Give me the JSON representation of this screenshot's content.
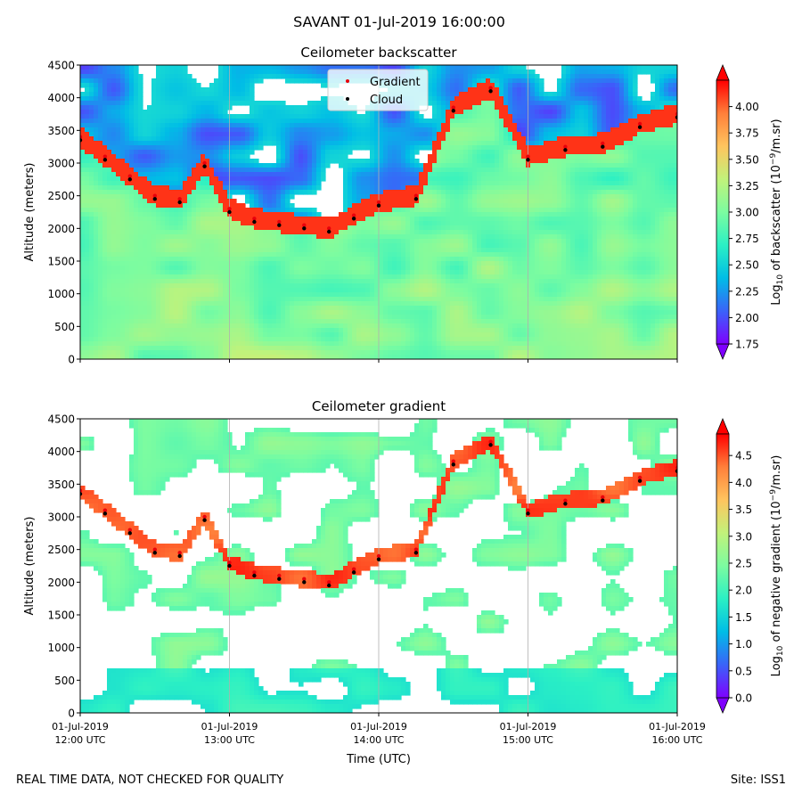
{
  "suptitle": "SAVANT 01-Jul-2019 16:00:00",
  "footer_left": "REAL TIME DATA, NOT CHECKED FOR QUALITY",
  "footer_right": "Site: ISS1",
  "colormap": [
    "#7f00ff",
    "#3a63f9",
    "#00bde6",
    "#2bf0c4",
    "#7cfca0",
    "#c2f27a",
    "#ffc45e",
    "#ff7f3a",
    "#ff0000"
  ],
  "colors": {
    "gradient_marker": "#e8000b",
    "cloud_marker": "#000000",
    "grid": "#b0b0b0"
  },
  "chart_data": [
    {
      "type": "heatmap",
      "title": "Ceilometer backscatter",
      "xlabel": "",
      "ylabel": "Altitude (meters)",
      "xlim": [
        "2019-07-01 12:00",
        "2019-07-01 16:00"
      ],
      "ylim": [
        0,
        4500
      ],
      "yticks": [
        "0",
        "500",
        "1000",
        "1500",
        "2000",
        "2500",
        "3000",
        "3500",
        "4000",
        "4500"
      ],
      "grid": "vertical lines at hour ticks",
      "legend": {
        "placement": "top-center",
        "entries": [
          "Gradient",
          "Cloud"
        ]
      },
      "colorbar": {
        "label_prefix": "Log",
        "label_sub": "10",
        "label_mid": " of backscatter (10",
        "label_sup": "−9",
        "label_suffix": "/m.sr)",
        "range": [
          1.75,
          4.25
        ],
        "extend": "both",
        "ticks": [
          "1.75",
          "2.00",
          "2.25",
          "2.50",
          "2.75",
          "3.00",
          "3.25",
          "3.50",
          "3.75",
          "4.00"
        ]
      },
      "series": [
        {
          "name": "Gradient",
          "marker": "red-dot",
          "x": [
            "12:00",
            "12:10",
            "12:20",
            "12:30",
            "12:40",
            "12:50",
            "13:00",
            "13:10",
            "13:20",
            "13:30",
            "13:40",
            "13:50",
            "14:00",
            "14:15",
            "14:30",
            "14:45",
            "15:00",
            "15:15",
            "15:30",
            "15:45",
            "16:00"
          ],
          "y": [
            3400,
            3100,
            2800,
            2500,
            2450,
            3000,
            2300,
            2150,
            2100,
            2050,
            2000,
            2200,
            2400,
            2500,
            3850,
            4150,
            3100,
            3250,
            3300,
            3600,
            3750
          ]
        },
        {
          "name": "Cloud",
          "marker": "black-dot",
          "x": [
            "12:00",
            "12:10",
            "12:20",
            "12:30",
            "12:40",
            "12:50",
            "13:00",
            "13:10",
            "13:20",
            "13:30",
            "13:40",
            "13:50",
            "14:00",
            "14:15",
            "14:30",
            "14:45",
            "15:00",
            "15:15",
            "15:30",
            "15:45",
            "16:00"
          ],
          "y": [
            3350,
            3050,
            2750,
            2450,
            2400,
            2950,
            2250,
            2100,
            2050,
            2000,
            1950,
            2150,
            2350,
            2450,
            3800,
            4100,
            3050,
            3200,
            3250,
            3550,
            3700
          ]
        }
      ]
    },
    {
      "type": "heatmap",
      "title": "Ceilometer gradient",
      "xlabel": "Time (UTC)",
      "ylabel": "Altitude (meters)",
      "xlim": [
        "2019-07-01 12:00",
        "2019-07-01 16:00"
      ],
      "ylim": [
        0,
        4500
      ],
      "xticks": [
        {
          "date": "01-Jul-2019",
          "time": "12:00 UTC"
        },
        {
          "date": "01-Jul-2019",
          "time": "13:00 UTC"
        },
        {
          "date": "01-Jul-2019",
          "time": "14:00 UTC"
        },
        {
          "date": "01-Jul-2019",
          "time": "15:00 UTC"
        },
        {
          "date": "01-Jul-2019",
          "time": "16:00 UTC"
        }
      ],
      "yticks": [
        "0",
        "500",
        "1000",
        "1500",
        "2000",
        "2500",
        "3000",
        "3500",
        "4000",
        "4500"
      ],
      "grid": "vertical lines at hour ticks",
      "colorbar": {
        "label_prefix": "Log",
        "label_sub": "10",
        "label_mid": " of negative gradient (10",
        "label_sup": "−9",
        "label_suffix": "/m.sr)",
        "range": [
          0.0,
          4.9
        ],
        "extend": "both",
        "ticks": [
          "0.0",
          "0.5",
          "1.0",
          "1.5",
          "2.0",
          "2.5",
          "3.0",
          "3.5",
          "4.0",
          "4.5"
        ]
      },
      "series": [
        {
          "name": "Gradient",
          "marker": "red-dot",
          "x": [
            "12:00",
            "12:10",
            "12:20",
            "12:30",
            "12:40",
            "12:50",
            "13:00",
            "13:10",
            "13:20",
            "13:30",
            "13:40",
            "13:50",
            "14:00",
            "14:15",
            "14:30",
            "14:45",
            "15:00",
            "15:15",
            "15:30",
            "15:45",
            "16:00"
          ],
          "y": [
            3400,
            3100,
            2800,
            2500,
            2450,
            3000,
            2300,
            2150,
            2100,
            2050,
            2000,
            2200,
            2400,
            2500,
            3850,
            4150,
            3100,
            3250,
            3300,
            3600,
            3750
          ]
        },
        {
          "name": "Cloud",
          "marker": "black-dot",
          "x": [
            "12:00",
            "12:10",
            "12:20",
            "12:30",
            "12:40",
            "12:50",
            "13:00",
            "13:10",
            "13:20",
            "13:30",
            "13:40",
            "13:50",
            "14:00",
            "14:15",
            "14:30",
            "14:45",
            "15:00",
            "15:15",
            "15:30",
            "15:45",
            "16:00"
          ],
          "y": [
            3350,
            3050,
            2750,
            2450,
            2400,
            2950,
            2250,
            2100,
            2050,
            2000,
            1950,
            2150,
            2350,
            2450,
            3800,
            4100,
            3050,
            3200,
            3250,
            3550,
            3700
          ]
        }
      ]
    }
  ]
}
